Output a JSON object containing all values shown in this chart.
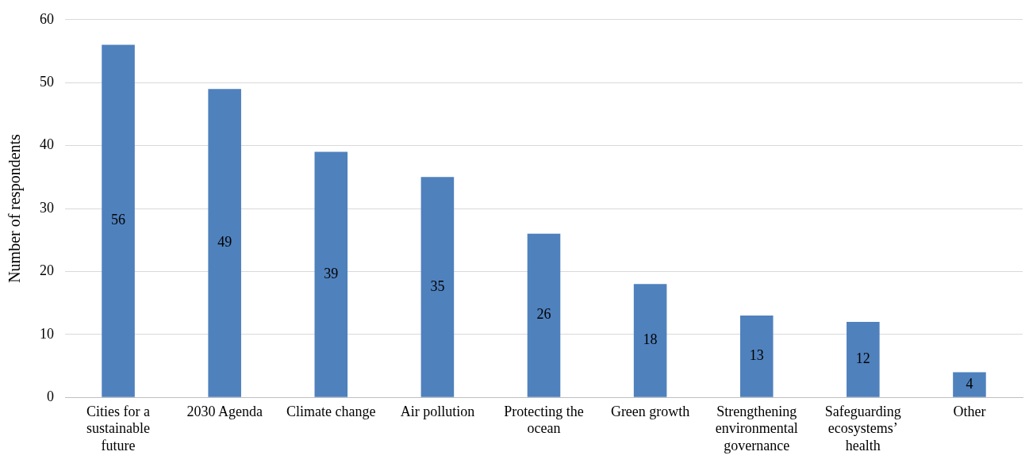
{
  "chart_data": {
    "type": "bar",
    "ylabel": "Number of respondents",
    "categories": [
      "Cities for a sustainable future",
      "2030 Agenda",
      "Climate change",
      "Air pollution",
      "Protecting the ocean",
      "Green growth",
      "Strengthening environmental governance",
      "Safeguarding ecosystems’ health",
      "Other"
    ],
    "values": [
      56,
      49,
      39,
      35,
      26,
      18,
      13,
      12,
      4
    ],
    "color": "#4f81bd",
    "ylim": [
      0,
      60
    ],
    "yticks": [
      0,
      10,
      20,
      30,
      40,
      50,
      60
    ],
    "grid": "y",
    "data_labels": true,
    "legend": false
  }
}
